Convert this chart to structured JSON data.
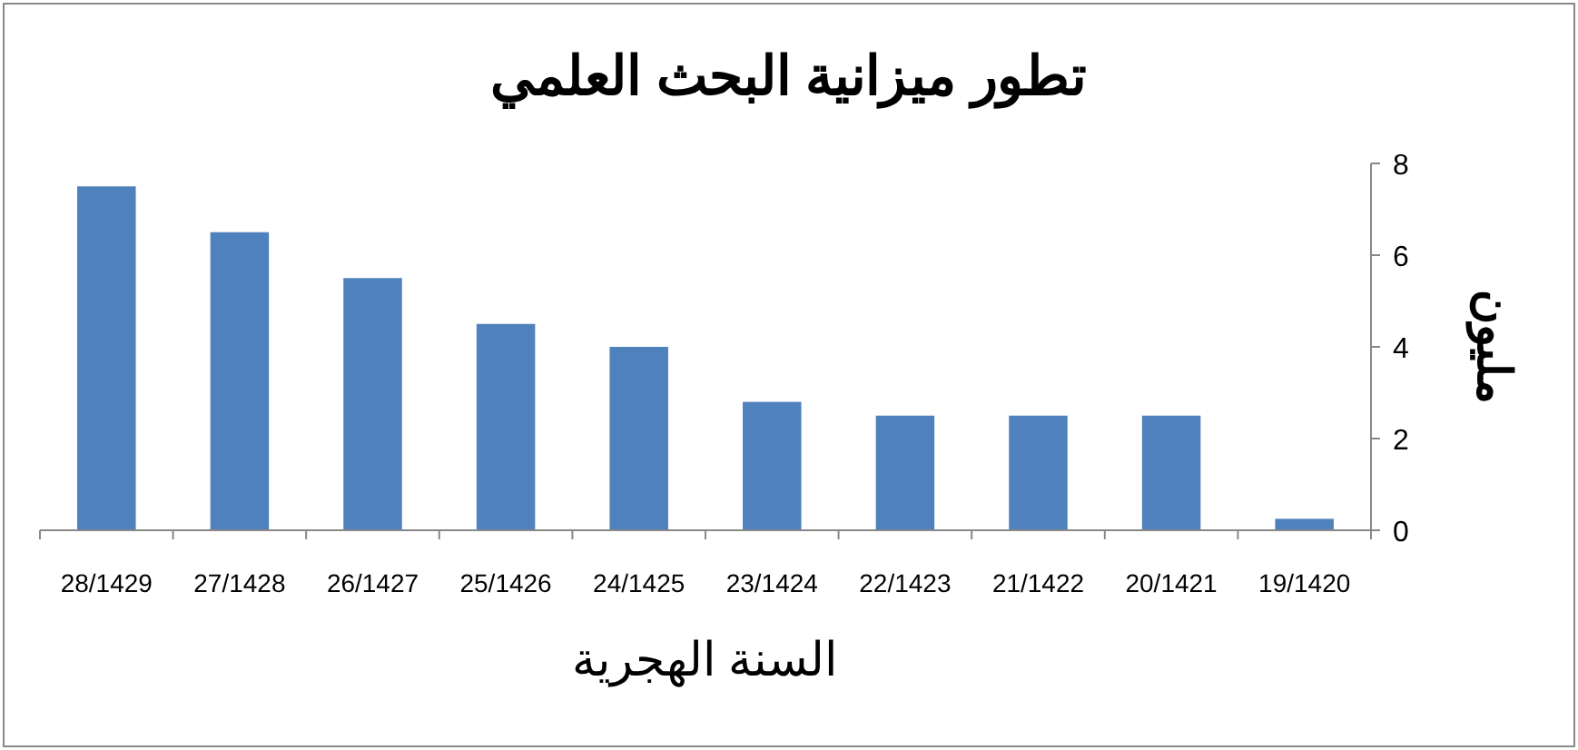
{
  "chart_data": {
    "type": "bar",
    "title": "تطور ميزانية البحث العلمي",
    "xlabel": "السنة الهجرية",
    "ylabel": "مليون",
    "categories": [
      "28/1429",
      "27/1428",
      "26/1427",
      "25/1426",
      "24/1425",
      "23/1424",
      "22/1423",
      "21/1422",
      "20/1421",
      "19/1420"
    ],
    "values": [
      7.5,
      6.5,
      5.5,
      4.5,
      4.0,
      2.8,
      2.5,
      2.5,
      2.5,
      0.25
    ],
    "color": "#4f81bd",
    "ylim": [
      0,
      8
    ],
    "yticks": [
      0,
      2,
      4,
      6,
      8
    ],
    "grid": false
  }
}
